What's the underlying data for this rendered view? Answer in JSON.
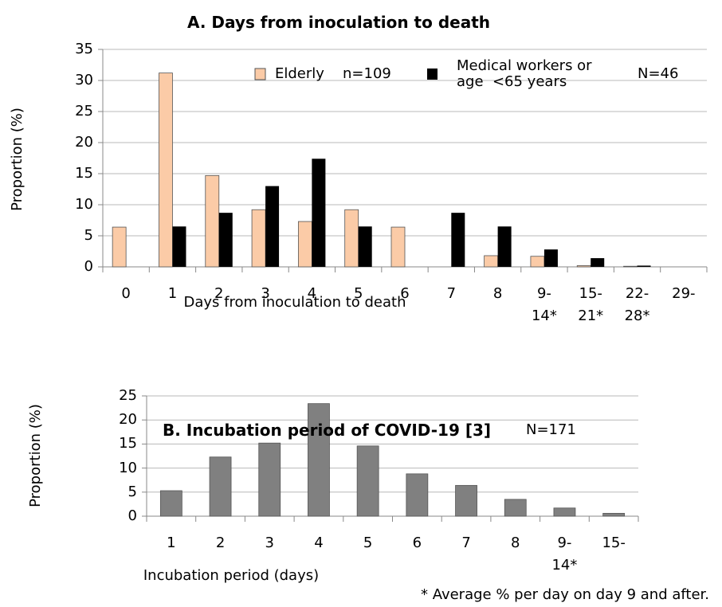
{
  "chart_data": [
    {
      "type": "bar",
      "title": "A. Days from inoculation to death",
      "x_label": "Days from inoculation to death",
      "y_label": "Proportion (%)",
      "categories": [
        "0",
        "1",
        "2",
        "3",
        "4",
        "5",
        "6",
        "7",
        "8",
        "9-\n14*",
        "15-\n21*",
        "22-\n28*",
        "29-"
      ],
      "series": [
        {
          "name": "Elderly",
          "color": "#fbcba7",
          "values": [
            6.4,
            31.2,
            14.7,
            9.2,
            7.3,
            9.2,
            6.4,
            0,
            1.8,
            1.7,
            0.2,
            0.1,
            0
          ]
        },
        {
          "name": "Medical workers or\nage  <65 years",
          "color": "#000000",
          "values": [
            0,
            6.5,
            8.7,
            13.0,
            17.4,
            6.5,
            0,
            8.7,
            6.5,
            2.8,
            1.4,
            0.2,
            0
          ]
        }
      ],
      "annotations": [
        "n=109",
        "N=46"
      ],
      "ylim": [
        0,
        35
      ],
      "yticks": [
        0,
        5,
        10,
        15,
        20,
        25,
        30,
        35
      ],
      "grid": true
    },
    {
      "type": "bar",
      "title": "B. Incubation period of COVID-19 [3]",
      "x_label": "Incubation period (days)",
      "y_label": "Proportion (%)",
      "categories": [
        "1",
        "2",
        "3",
        "4",
        "5",
        "6",
        "7",
        "8",
        "9-\n14*",
        "15-"
      ],
      "series": [
        {
          "name": null,
          "color": "#808080",
          "values": [
            5.3,
            12.3,
            15.2,
            23.4,
            14.6,
            8.8,
            6.4,
            3.5,
            1.7,
            0.6
          ]
        }
      ],
      "annotations": [
        "N=171"
      ],
      "ylim": [
        0,
        25
      ],
      "yticks": [
        0,
        5,
        10,
        15,
        20,
        25
      ],
      "grid": true
    }
  ],
  "footnote": "* Average % per day on day 9 and after."
}
